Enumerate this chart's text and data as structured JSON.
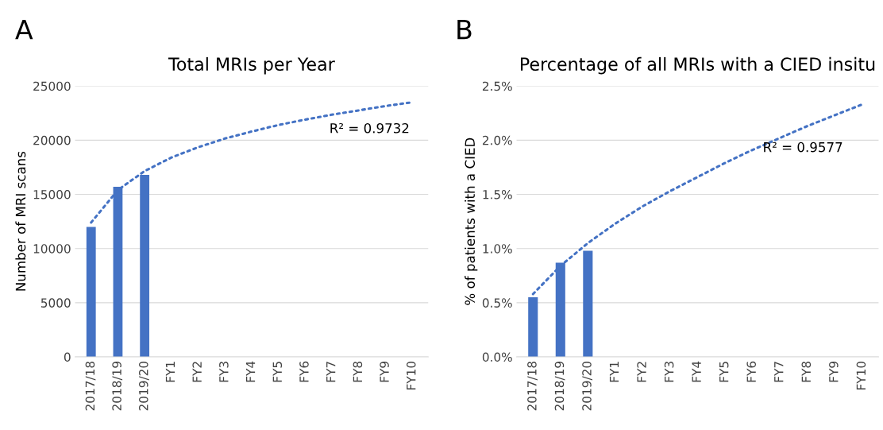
{
  "chart_data": [
    {
      "type": "bar",
      "title": "Total MRIs per Year",
      "ylabel": "Number of MRI scans",
      "categories": [
        "2017/18",
        "2018/19",
        "2019/20",
        "FY1",
        "FY2",
        "FY3",
        "FY4",
        "FY5",
        "FY6",
        "FY7",
        "FY8",
        "FY9",
        "FY10"
      ],
      "series": [
        {
          "color": "#4472c4",
          "values": [
            12000,
            15700,
            16800,
            null,
            null,
            null,
            null,
            null,
            null,
            null,
            null,
            null,
            null
          ]
        },
        {
          "type": "line",
          "line_style": "dotted",
          "color": "#4472c4",
          "values": [
            12400,
            15400,
            17150,
            18400,
            19350,
            20150,
            20800,
            21400,
            21900,
            22350,
            22750,
            23150,
            23500
          ]
        }
      ],
      "ylim": [
        0,
        25000
      ],
      "yticks": [
        0,
        5000,
        10000,
        15000,
        20000,
        25000
      ],
      "grid": "y",
      "annotations": [
        "A",
        "R² = 0.9732"
      ]
    },
    {
      "type": "bar",
      "title": "Percentage of all MRIs with a CIED insitu",
      "ylabel": "% of patients with a CIED",
      "categories": [
        "2017/18",
        "2018/19",
        "2019/20",
        "FY1",
        "FY2",
        "FY3",
        "FY4",
        "FY5",
        "FY6",
        "FY7",
        "FY8",
        "FY9",
        "FY10"
      ],
      "series": [
        {
          "color": "#4472c4",
          "values": [
            0.55,
            0.87,
            0.98,
            null,
            null,
            null,
            null,
            null,
            null,
            null,
            null,
            null,
            null
          ]
        },
        {
          "type": "line",
          "line_style": "dotted",
          "color": "#4472c4",
          "values": [
            0.58,
            0.84,
            1.05,
            1.23,
            1.39,
            1.53,
            1.66,
            1.79,
            1.91,
            2.02,
            2.13,
            2.23,
            2.33
          ]
        }
      ],
      "ylim": [
        0,
        2.5
      ],
      "yticks": [
        {
          "value": 0,
          "label": "0.0%"
        },
        {
          "value": 0.5,
          "label": "0.5%"
        },
        {
          "value": 1.0,
          "label": "1.0%"
        },
        {
          "value": 1.5,
          "label": "1.5%"
        },
        {
          "value": 2.0,
          "label": "2.0%"
        },
        {
          "value": 2.5,
          "label": "2.5%"
        }
      ],
      "grid": "y",
      "annotations": [
        "B",
        "R² = 0.9577"
      ]
    }
  ]
}
